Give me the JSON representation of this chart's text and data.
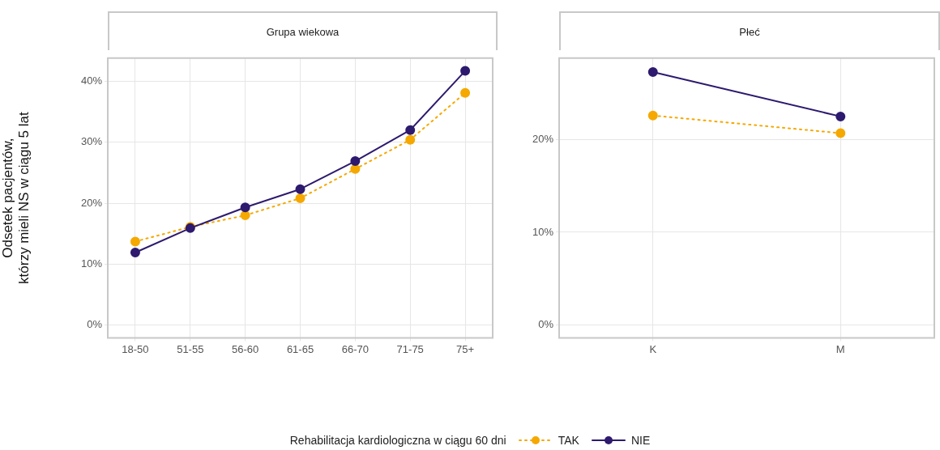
{
  "chart_data": [
    {
      "type": "line",
      "title": "Grupa wiekowa",
      "ylabel": "Odsetek pacjentów,\nktórzy mieli NS w ciągu 5 lat",
      "categories": [
        "18-50",
        "51-55",
        "56-60",
        "61-65",
        "66-70",
        "71-75",
        "75+"
      ],
      "series": [
        {
          "name": "TAK",
          "color": "#f5a800",
          "line_style": "dotted",
          "values": [
            13.7,
            16.1,
            18.0,
            20.8,
            25.6,
            30.4,
            38.1
          ]
        },
        {
          "name": "NIE",
          "color": "#2e1a6e",
          "line_style": "solid",
          "values": [
            11.9,
            15.9,
            19.3,
            22.3,
            26.9,
            32.0,
            41.7
          ]
        }
      ],
      "ylim": [
        -2.1,
        43.8
      ],
      "yticks": [
        {
          "value": 0,
          "label": "0%"
        },
        {
          "value": 10,
          "label": "10%"
        },
        {
          "value": 20,
          "label": "20%"
        },
        {
          "value": 30,
          "label": "30%"
        },
        {
          "value": 40,
          "label": "40%"
        }
      ],
      "grid": true,
      "marker": "circle",
      "legend": "bottom",
      "legend_title": "Rehabilitacja kardiologiczna w ciągu 60 dni"
    },
    {
      "type": "line",
      "title": "Płeć",
      "categories": [
        "K",
        "M"
      ],
      "series": [
        {
          "color": "#f5a800",
          "line_style": "dotted",
          "values": [
            22.6,
            20.7
          ]
        },
        {
          "color": "#2e1a6e",
          "line_style": "solid",
          "values": [
            27.3,
            22.5
          ]
        }
      ],
      "ylim": [
        -1.4,
        28.8
      ],
      "yticks": [
        {
          "value": 0,
          "label": "0%"
        },
        {
          "value": 10,
          "label": "10%"
        },
        {
          "value": 20,
          "label": "20%"
        }
      ],
      "grid": true,
      "marker": "circle"
    }
  ]
}
